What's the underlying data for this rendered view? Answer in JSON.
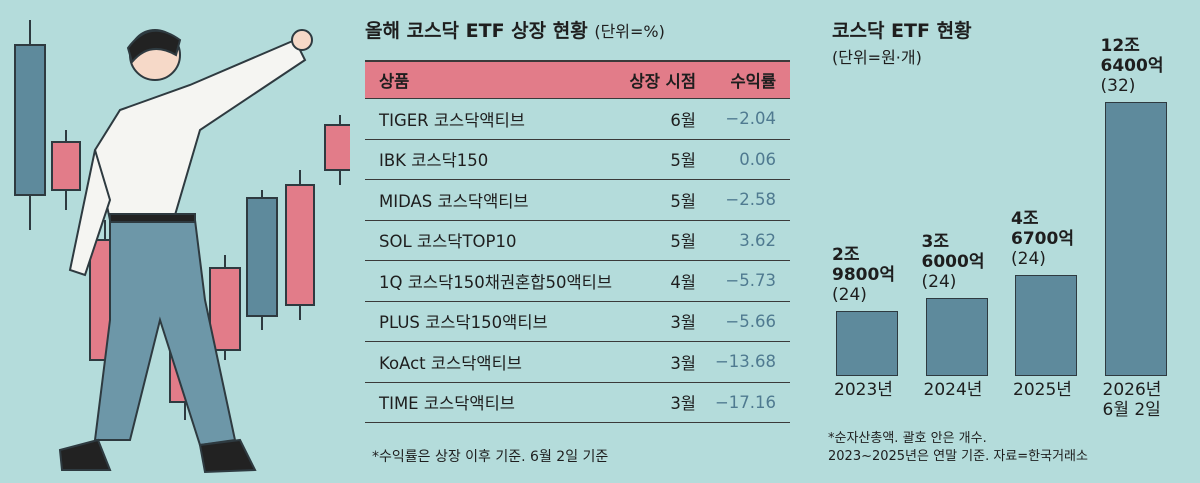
{
  "table": {
    "title": "올해 코스닥 ETF 상장 현황",
    "unit": "(단위=%)",
    "columns": [
      "상품",
      "상장 시점",
      "수익률"
    ],
    "rows": [
      [
        "TIGER 코스닥액티브",
        "6월",
        "−2.04"
      ],
      [
        "IBK 코스닥150",
        "5월",
        "0.06"
      ],
      [
        "MIDAS 코스닥액티브",
        "5월",
        "−2.58"
      ],
      [
        "SOL 코스닥TOP10",
        "5월",
        "3.62"
      ],
      [
        "1Q 코스닥150채권혼합50액티브",
        "4월",
        "−5.73"
      ],
      [
        "PLUS 코스닥150액티브",
        "3월",
        "−5.66"
      ],
      [
        "KoAct 코스닥액티브",
        "3월",
        "−13.68"
      ],
      [
        "TIME 코스닥액티브",
        "3월",
        "−17.16"
      ]
    ],
    "footnote": "*수익률은 상장 이후 기준. 6월 2일 기준"
  },
  "chart_data": {
    "type": "bar",
    "title": "코스닥 ETF 현황",
    "subtitle": "(단위=원·개)",
    "categories": [
      "2023년",
      "2024년",
      "2025년",
      "2026년\n6월 2일"
    ],
    "values": [
      29800,
      36000,
      46700,
      126400
    ],
    "value_labels": [
      "2조\n9800억",
      "3조\n6000억",
      "4조\n6700억",
      "12조\n6400억"
    ],
    "counts": [
      24,
      24,
      24,
      32
    ],
    "count_labels": [
      "(24)",
      "(24)",
      "(24)",
      "(32)"
    ],
    "color": "#5e8a9c",
    "notes": [
      "*순자산총액. 괄호 안은 개수.",
      "2023~2025년은 연말 기준. 자료=한국거래소"
    ]
  }
}
